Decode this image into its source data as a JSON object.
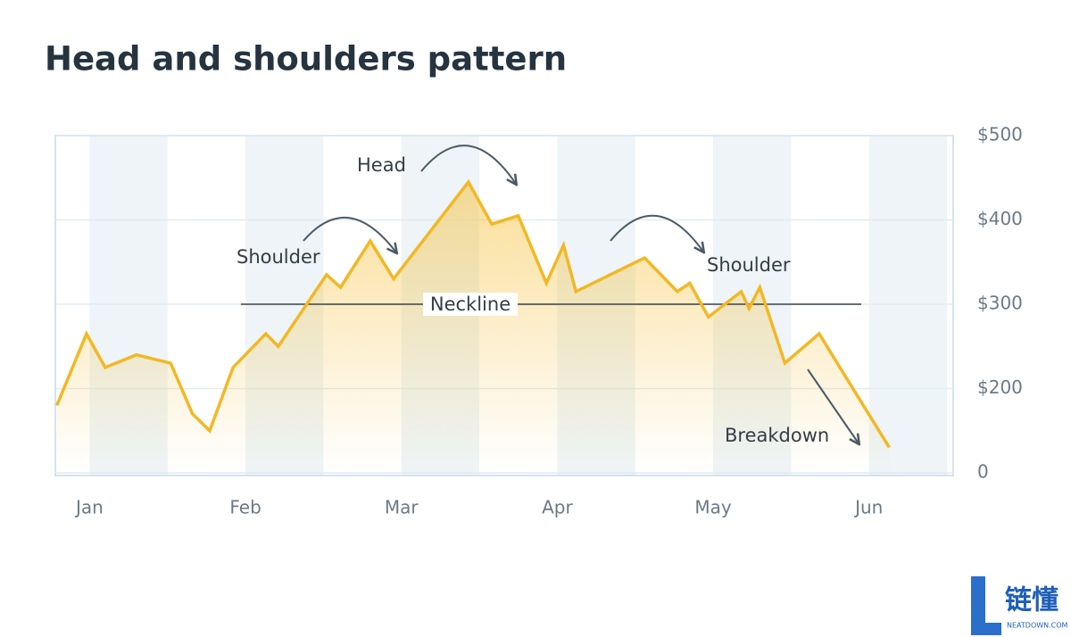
{
  "chart_data": {
    "type": "line",
    "title": "Head and shoulders pattern",
    "x": [
      -0.21,
      -0.02,
      0.1,
      0.3,
      0.52,
      0.66,
      0.77,
      0.92,
      1.13,
      1.21,
      1.52,
      1.61,
      1.8,
      1.95,
      2.43,
      2.58,
      2.75,
      2.93,
      3.04,
      3.12,
      3.56,
      3.77,
      3.85,
      3.97,
      4.18,
      4.23,
      4.3,
      4.46,
      4.68,
      5.13
    ],
    "values": [
      180,
      265,
      225,
      240,
      230,
      170,
      150,
      225,
      265,
      250,
      335,
      320,
      375,
      330,
      445,
      395,
      405,
      325,
      370,
      315,
      355,
      315,
      325,
      285,
      315,
      295,
      320,
      230,
      265,
      130
    ],
    "color": "#f2b824",
    "xlim": [
      -0.22,
      5.54
    ],
    "xticks": [
      {
        "value": 0,
        "label": "Jan"
      },
      {
        "value": 1,
        "label": "Feb"
      },
      {
        "value": 2,
        "label": "Mar"
      },
      {
        "value": 3,
        "label": "Apr"
      },
      {
        "value": 4,
        "label": "May"
      },
      {
        "value": 5,
        "label": "Jun"
      }
    ],
    "ylim": [
      0,
      500
    ],
    "axis_break": [
      0,
      100
    ],
    "yticks": [
      0,
      {
        "value": 200,
        "label": "$200"
      },
      {
        "value": 300,
        "label": "$300"
      },
      {
        "value": 400,
        "label": "$400"
      },
      {
        "value": 500,
        "label": "$500"
      }
    ],
    "grid": true,
    "bands": true,
    "neckline": {
      "label": "Neckline",
      "value": 300,
      "x": [
        0.97,
        4.95
      ]
    },
    "annotations": {
      "head": "Head",
      "left_shoulder": "Shoulder",
      "right_shoulder": "Shoulder",
      "breakdown": "Breakdown"
    }
  },
  "brand": {
    "name": "链懂",
    "site": "NEATDOWN.COM"
  }
}
